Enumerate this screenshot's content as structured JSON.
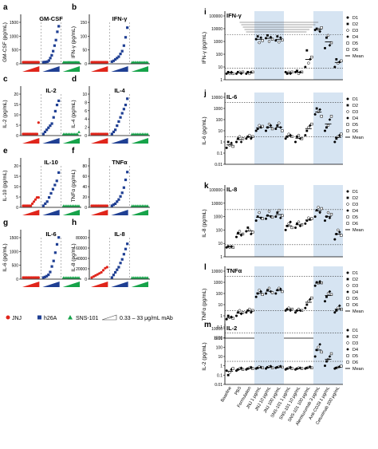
{
  "panel_letters": [
    "a",
    "b",
    "c",
    "d",
    "e",
    "f",
    "g",
    "h",
    "i",
    "j",
    "k",
    "l",
    "m"
  ],
  "legend": {
    "jnj": "JNJ",
    "h26a": "h26A",
    "sns": "SNS-101",
    "conc": "0.33 – 33 μg/mL mAb"
  },
  "right_legend": [
    "D1",
    "D2",
    "D3",
    "D4",
    "D5",
    "D6",
    "Mean"
  ],
  "colors": {
    "jnj": "#e0251b",
    "h26a": "#1f3f93",
    "sns": "#16a34a",
    "shade": "#d6e4f2"
  },
  "chart_data": [
    {
      "type": "scatter",
      "panel": "a",
      "title": "GM-CSF",
      "ylabel": "GM-CSF (pg/mL)",
      "ylim": [
        0,
        1500
      ],
      "yticks": [
        "0",
        "500",
        "1000",
        "1500"
      ],
      "xticks": [],
      "series": [
        {
          "name": "JNJ",
          "values": [
            0,
            0,
            0,
            0,
            0,
            0,
            0,
            0,
            0,
            0,
            0,
            0,
            0,
            0,
            0,
            0,
            0,
            0
          ]
        },
        {
          "name": "h26A",
          "values": [
            0,
            5,
            10,
            20,
            60,
            150,
            250,
            400,
            600,
            800,
            1100,
            1300
          ]
        },
        {
          "name": "SNS-101",
          "values": [
            0,
            0,
            0,
            0,
            0,
            0,
            0,
            0,
            0,
            0,
            0,
            0,
            0,
            0,
            0,
            0,
            0,
            0
          ]
        }
      ]
    },
    {
      "type": "scatter",
      "panel": "b",
      "title": "IFN-γ",
      "ylabel": "IFN-γ (pg/mL)",
      "ylim": [
        0,
        150
      ],
      "yticks": [
        "0",
        "50",
        "100",
        "150"
      ],
      "xticks": [],
      "series": [
        {
          "name": "JNJ",
          "values": [
            0,
            0,
            0,
            0,
            0,
            0,
            0,
            0,
            0,
            0,
            0,
            0
          ]
        },
        {
          "name": "h26A",
          "values": [
            2,
            5,
            10,
            15,
            20,
            30,
            40,
            60,
            90,
            125
          ]
        },
        {
          "name": "SNS-101",
          "values": [
            0,
            0,
            0,
            0,
            0,
            0,
            0,
            0,
            0,
            0,
            0,
            0
          ]
        }
      ]
    },
    {
      "type": "scatter",
      "panel": "c",
      "title": "IL-2",
      "ylabel": "IL-2 (pg/mL)",
      "ylim": [
        0,
        20
      ],
      "yticks": [
        "0",
        "5",
        "10",
        "15",
        "20"
      ],
      "xticks": [],
      "series": [
        {
          "name": "JNJ",
          "values": [
            0,
            0,
            0,
            0,
            0,
            0,
            0,
            0,
            0,
            0,
            5.5
          ]
        },
        {
          "name": "h26A",
          "values": [
            0,
            1,
            2,
            3,
            4,
            5,
            8,
            11,
            14,
            16
          ]
        },
        {
          "name": "SNS-101",
          "values": [
            0,
            0,
            0,
            0,
            0,
            0,
            0,
            0,
            0,
            0,
            1
          ]
        }
      ]
    },
    {
      "type": "scatter",
      "panel": "d",
      "title": "IL-4",
      "ylabel": "IL-4 (pg/mL)",
      "ylim": [
        0,
        10
      ],
      "yticks": [
        "0",
        "2",
        "4",
        "6",
        "8",
        "10"
      ],
      "xticks": [],
      "series": [
        {
          "name": "JNJ",
          "values": [
            0,
            0,
            0,
            0,
            0,
            0,
            0,
            0,
            0,
            0
          ]
        },
        {
          "name": "h26A",
          "values": [
            0,
            0.5,
            1,
            2,
            3,
            4,
            5,
            6,
            7,
            8.5
          ]
        },
        {
          "name": "SNS-101",
          "values": [
            0,
            0,
            0,
            0,
            0,
            0,
            0,
            0,
            0,
            0
          ]
        }
      ]
    },
    {
      "type": "scatter",
      "panel": "e",
      "title": "IL-10",
      "ylabel": "IL-10 (pg/mL)",
      "ylim": [
        0,
        20
      ],
      "yticks": [
        "0",
        "5",
        "10",
        "15",
        "20"
      ],
      "xticks": [],
      "series": [
        {
          "name": "JNJ",
          "values": [
            0,
            0,
            0,
            0,
            0,
            0,
            1,
            2,
            3,
            4,
            4
          ]
        },
        {
          "name": "h26A",
          "values": [
            0,
            1,
            2,
            4,
            6,
            8,
            10,
            12,
            16
          ]
        },
        {
          "name": "SNS-101",
          "values": [
            0,
            0,
            0,
            0,
            0,
            0,
            0,
            0,
            0,
            0
          ]
        }
      ]
    },
    {
      "type": "scatter",
      "panel": "f",
      "title": "TNFα",
      "ylabel": "TNFα (pg/mL)",
      "ylim": [
        0,
        80
      ],
      "yticks": [
        "0",
        "20",
        "40",
        "60",
        "80"
      ],
      "xticks": [],
      "series": [
        {
          "name": "JNJ",
          "values": [
            0,
            0,
            0,
            0,
            0,
            0,
            0,
            0,
            0,
            0
          ]
        },
        {
          "name": "h26A",
          "values": [
            0,
            2,
            4,
            8,
            12,
            18,
            25,
            35,
            50,
            65
          ]
        },
        {
          "name": "SNS-101",
          "values": [
            0,
            0,
            0,
            0,
            0,
            0,
            0,
            0,
            0,
            0
          ]
        }
      ]
    },
    {
      "type": "scatter",
      "panel": "g",
      "title": "IL-6",
      "ylabel": "IL-6 (pg/mL)",
      "ylim": [
        0,
        1500
      ],
      "yticks": [
        "0",
        "500",
        "1000",
        "1500"
      ],
      "xticks": [],
      "series": [
        {
          "name": "JNJ",
          "values": [
            0,
            0,
            0,
            0,
            0,
            0,
            0,
            0,
            0,
            0
          ]
        },
        {
          "name": "h26A",
          "values": [
            0,
            20,
            50,
            100,
            200,
            400,
            600,
            900,
            1200,
            1450
          ]
        },
        {
          "name": "SNS-101",
          "values": [
            0,
            0,
            0,
            0,
            0,
            0,
            0,
            0,
            0,
            0
          ]
        }
      ]
    },
    {
      "type": "scatter",
      "panel": "h",
      "title": "IL-8",
      "ylabel": "IL-8 (pg/mL)",
      "ylim": [
        0,
        80000
      ],
      "yticks": [
        "0",
        "20000",
        "40000",
        "60000",
        "80000"
      ],
      "xticks": [],
      "series": [
        {
          "name": "JNJ",
          "values": [
            0,
            2000,
            4000,
            6000,
            8000,
            10000,
            14000,
            18000,
            20000
          ]
        },
        {
          "name": "h26A",
          "values": [
            0,
            5000,
            10000,
            15000,
            20000,
            28000,
            35000,
            45000,
            55000,
            65000
          ]
        },
        {
          "name": "SNS-101",
          "values": [
            0,
            0,
            0,
            0,
            0,
            0,
            0,
            0,
            0,
            0
          ]
        }
      ]
    },
    {
      "type": "scatter",
      "panel": "i",
      "title": "IFN-γ",
      "ylabel": "IFN-γ (pg/mL)",
      "yscale": "log",
      "ylim": [
        1,
        100000
      ],
      "yticks": [
        "1",
        "10",
        "100",
        "1000",
        "10000",
        "100000"
      ],
      "xticks": [],
      "values": [
        [
          3,
          4,
          3,
          4,
          3
        ],
        [
          3,
          4,
          4,
          3,
          4
        ],
        [
          3,
          4,
          3,
          4,
          4
        ],
        [
          1500,
          2500,
          800,
          2000,
          1200
        ],
        [
          1800,
          3000,
          1000,
          2200,
          1500
        ],
        [
          1200,
          2500,
          900,
          2000,
          1300
        ],
        [
          4,
          3,
          4,
          3,
          4
        ],
        [
          4,
          5,
          3,
          4,
          4
        ],
        [
          10,
          200,
          20,
          40,
          60
        ],
        [
          8000,
          10000,
          9000,
          6000,
          12000
        ],
        [
          300,
          2000,
          3000,
          500,
          800
        ],
        [
          10,
          40,
          20,
          25,
          30
        ]
      ]
    },
    {
      "type": "scatter",
      "panel": "j",
      "title": "IL-6",
      "ylabel": "IL-6 (pg/mL)",
      "yscale": "log",
      "ylim": [
        0.01,
        10000
      ],
      "yticks": [
        "0.01",
        "0.1",
        "1",
        "10",
        "100",
        "1000",
        "10000"
      ],
      "xticks": [],
      "values": [
        [
          0.3,
          1,
          0.5,
          0.8,
          0.4
        ],
        [
          1,
          2,
          3,
          1,
          2
        ],
        [
          2,
          3,
          4,
          2,
          3
        ],
        [
          10,
          15,
          30,
          20,
          25
        ],
        [
          10,
          20,
          40,
          30,
          15
        ],
        [
          15,
          30,
          50,
          20,
          10
        ],
        [
          2,
          3,
          5,
          4,
          3
        ],
        [
          1,
          3,
          4,
          2,
          2
        ],
        [
          4,
          10,
          20,
          30,
          40
        ],
        [
          300,
          1000,
          500,
          800,
          200
        ],
        [
          10,
          20,
          30,
          100,
          200
        ],
        [
          1,
          2,
          3,
          4,
          5
        ]
      ]
    },
    {
      "type": "scatter",
      "panel": "k",
      "title": "IL-8",
      "ylabel": "IL-8 (pg/mL)",
      "yscale": "log",
      "ylim": [
        1,
        100000
      ],
      "yticks": [
        "1",
        "10",
        "100",
        "1000",
        "10000",
        "100000"
      ],
      "xticks": [],
      "values": [
        [
          5,
          6,
          5,
          6,
          5
        ],
        [
          30,
          60,
          80,
          40,
          50
        ],
        [
          80,
          150,
          100,
          50,
          70
        ],
        [
          500,
          1000,
          2000,
          800,
          700
        ],
        [
          700,
          1200,
          2500,
          1000,
          900
        ],
        [
          1000,
          2000,
          3000,
          800,
          1200
        ],
        [
          100,
          200,
          300,
          400,
          150
        ],
        [
          150,
          300,
          400,
          200,
          250
        ],
        [
          300,
          500,
          800,
          600,
          700
        ],
        [
          1000,
          3000,
          5000,
          2000,
          4000
        ],
        [
          500,
          1000,
          2000,
          800,
          1500
        ],
        [
          20,
          50,
          100,
          70,
          40
        ]
      ]
    },
    {
      "type": "scatter",
      "panel": "l",
      "title": "TNFα",
      "ylabel": "TNFα (pg/mL)",
      "yscale": "log",
      "ylim": [
        0.01,
        10000
      ],
      "yticks": [
        "0.01",
        "0.1",
        "1",
        "10",
        "100",
        "1000",
        "10000"
      ],
      "xticks": [],
      "values": [
        [
          0.5,
          1,
          0.7,
          0.8,
          0.6
        ],
        [
          1,
          2,
          3,
          1.5,
          2
        ],
        [
          2,
          3,
          4,
          2,
          3
        ],
        [
          50,
          100,
          200,
          150,
          80
        ],
        [
          100,
          200,
          300,
          150,
          120
        ],
        [
          100,
          200,
          300,
          250,
          150
        ],
        [
          3,
          4,
          5,
          3,
          4
        ],
        [
          2,
          3,
          4,
          3,
          3
        ],
        [
          5,
          10,
          20,
          30,
          40
        ],
        [
          500,
          1000,
          800,
          1200,
          900
        ],
        [
          20,
          50,
          100,
          150,
          80
        ],
        [
          2,
          3,
          5,
          8,
          4
        ]
      ]
    },
    {
      "type": "scatter",
      "panel": "m",
      "title": "IL-2",
      "ylabel": "IL-2 (pg/mL)",
      "yscale": "log",
      "ylim": [
        0.01,
        10000
      ],
      "yticks": [
        "0.01",
        "0.1",
        "1",
        "10",
        "100",
        "1000",
        "10000"
      ],
      "xticks": [
        "Baseline",
        "PBS",
        "Formulation",
        "JNJ 1 μg/mL",
        "JNJ 10 μg/mL",
        "JNJ 100 μg/mL",
        "SNS-101 1 μg/mL",
        "SNS-101 10 μg/mL",
        "SNS-101 100 μg/mL",
        "Alemtuzumab 3 μg/mL",
        "Anti-CD28 1 μg/mL",
        "Cetuximab 200 μg/mL"
      ],
      "values": [
        [
          0.3,
          0.1,
          0.2,
          0.4,
          0.5
        ],
        [
          0.3,
          0.4,
          0.5,
          0.6,
          0.4
        ],
        [
          0.4,
          0.5,
          0.6,
          0.7,
          0.5
        ],
        [
          0.5,
          0.6,
          0.8,
          0.7,
          0.6
        ],
        [
          0.5,
          0.7,
          0.8,
          0.9,
          0.6
        ],
        [
          0.6,
          0.7,
          0.8,
          0.9,
          0.7
        ],
        [
          0.4,
          0.5,
          0.6,
          0.7,
          0.5
        ],
        [
          0.4,
          0.5,
          0.6,
          0.6,
          0.5
        ],
        [
          0.5,
          0.6,
          0.7,
          0.8,
          0.6
        ],
        [
          10,
          50,
          100,
          200,
          30
        ],
        [
          1,
          3,
          5,
          10,
          20
        ],
        [
          0.5,
          0.6,
          0.7,
          0.8,
          0.9
        ]
      ]
    }
  ]
}
